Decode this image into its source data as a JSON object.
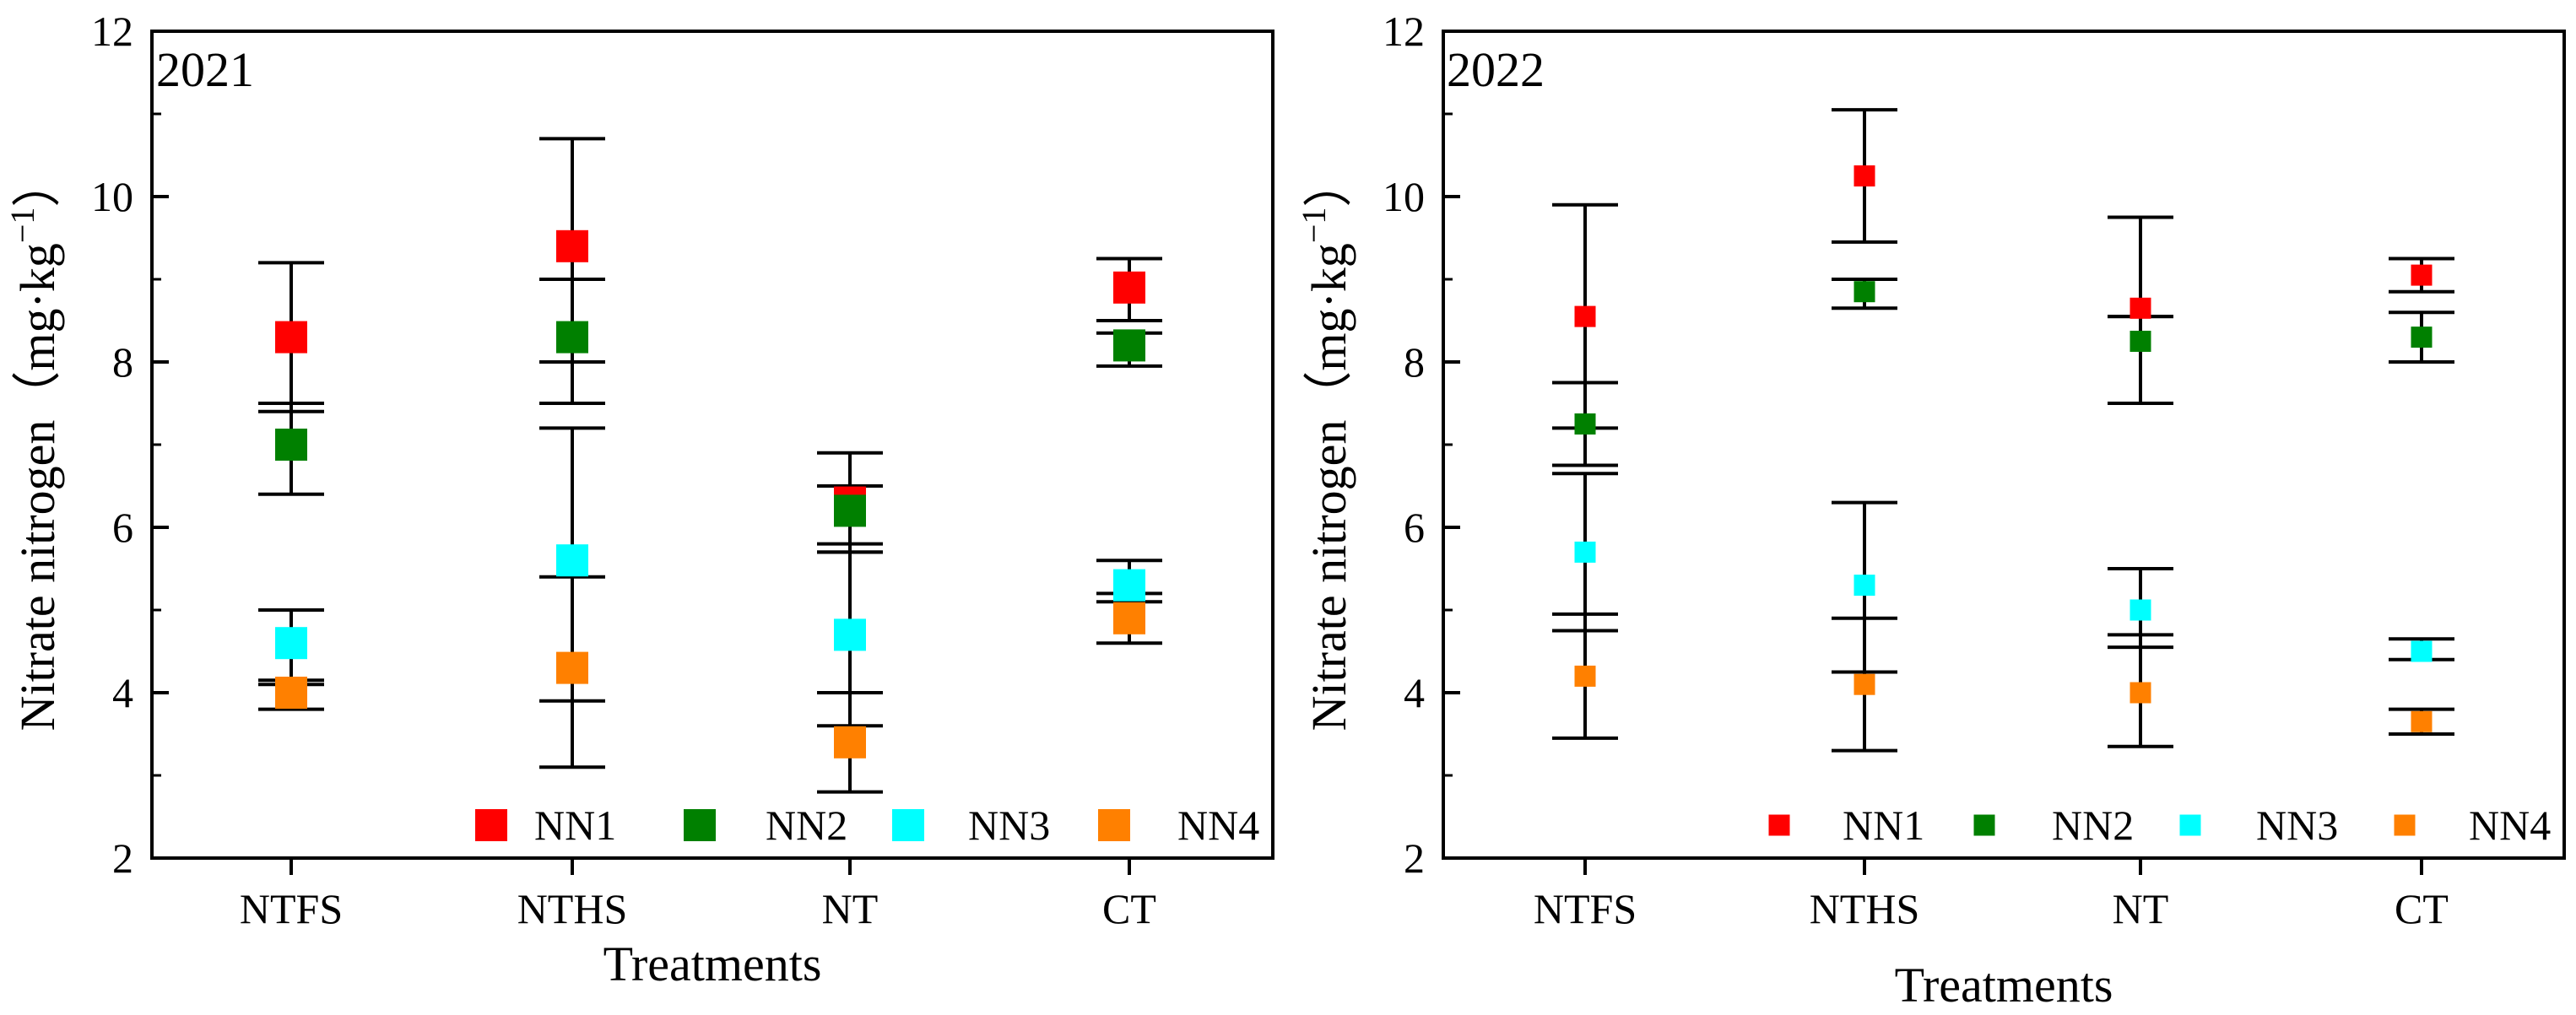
{
  "chart_data": [
    {
      "type": "scatter",
      "panel_label": "2021",
      "categories": [
        "NTFS",
        "NTHS",
        "NT",
        "CT"
      ],
      "xlabel": "Treatments",
      "ylabel": "Nitrate nitrogen（mg·kg",
      "ylabel_superscript": "−1",
      "ylabel_close": "）",
      "ylim": [
        2,
        12
      ],
      "yticks": [
        2,
        4,
        6,
        8,
        10,
        12
      ],
      "legend_position": "bottom",
      "series": [
        {
          "name": "NN1",
          "color": "#ff0000",
          "values": [
            8.3,
            9.4,
            6.3,
            8.9
          ],
          "err_low": [
            7.4,
            8.0,
            5.7,
            8.5
          ],
          "err_high": [
            9.2,
            10.7,
            6.9,
            9.25
          ]
        },
        {
          "name": "NN2",
          "color": "#008000",
          "values": [
            7.0,
            8.3,
            6.2,
            8.2
          ],
          "err_low": [
            6.4,
            7.5,
            5.7,
            7.95
          ],
          "err_high": [
            7.5,
            9.0,
            6.5,
            8.35
          ]
        },
        {
          "name": "NN3",
          "color": "#00ffff",
          "values": [
            4.6,
            5.6,
            4.7,
            5.3
          ],
          "err_low": [
            4.1,
            3.9,
            3.6,
            5.1
          ],
          "err_high": [
            5.0,
            7.2,
            5.8,
            5.6
          ]
        },
        {
          "name": "NN4",
          "color": "#ff8000",
          "values": [
            4.0,
            4.3,
            3.4,
            4.9
          ],
          "err_low": [
            3.8,
            3.1,
            2.8,
            4.6
          ],
          "err_high": [
            4.15,
            5.4,
            4.0,
            5.2
          ]
        }
      ]
    },
    {
      "type": "scatter",
      "panel_label": "2022",
      "categories": [
        "NTFS",
        "NTHS",
        "NT",
        "CT"
      ],
      "xlabel": "Treatments",
      "ylabel": "Nitrate nitrogen（mg·kg",
      "ylabel_superscript": "−1",
      "ylabel_close": "）",
      "ylim": [
        2,
        12
      ],
      "yticks": [
        2,
        4,
        6,
        8,
        10,
        12
      ],
      "legend_position": "bottom",
      "series": [
        {
          "name": "NN1",
          "color": "#ff0000",
          "values": [
            8.55,
            10.25,
            8.65,
            9.05
          ],
          "err_low": [
            7.2,
            9.45,
            8.55,
            8.85
          ],
          "err_high": [
            9.9,
            11.05,
            9.75,
            9.25
          ]
        },
        {
          "name": "NN2",
          "color": "#008000",
          "values": [
            7.25,
            8.85,
            8.25,
            8.3
          ],
          "err_low": [
            6.75,
            8.65,
            7.5,
            8.0
          ],
          "err_high": [
            7.75,
            9.0,
            8.55,
            8.6
          ]
        },
        {
          "name": "NN3",
          "color": "#00ffff",
          "values": [
            5.7,
            5.3,
            5.0,
            4.5
          ],
          "err_low": [
            4.75,
            4.25,
            4.55,
            4.4
          ],
          "err_high": [
            6.65,
            6.3,
            5.5,
            4.65
          ]
        },
        {
          "name": "NN4",
          "color": "#ff8000",
          "values": [
            4.2,
            4.1,
            4.0,
            3.65
          ],
          "err_low": [
            3.45,
            3.3,
            3.35,
            3.5
          ],
          "err_high": [
            4.95,
            4.9,
            4.7,
            3.8
          ]
        }
      ]
    }
  ]
}
